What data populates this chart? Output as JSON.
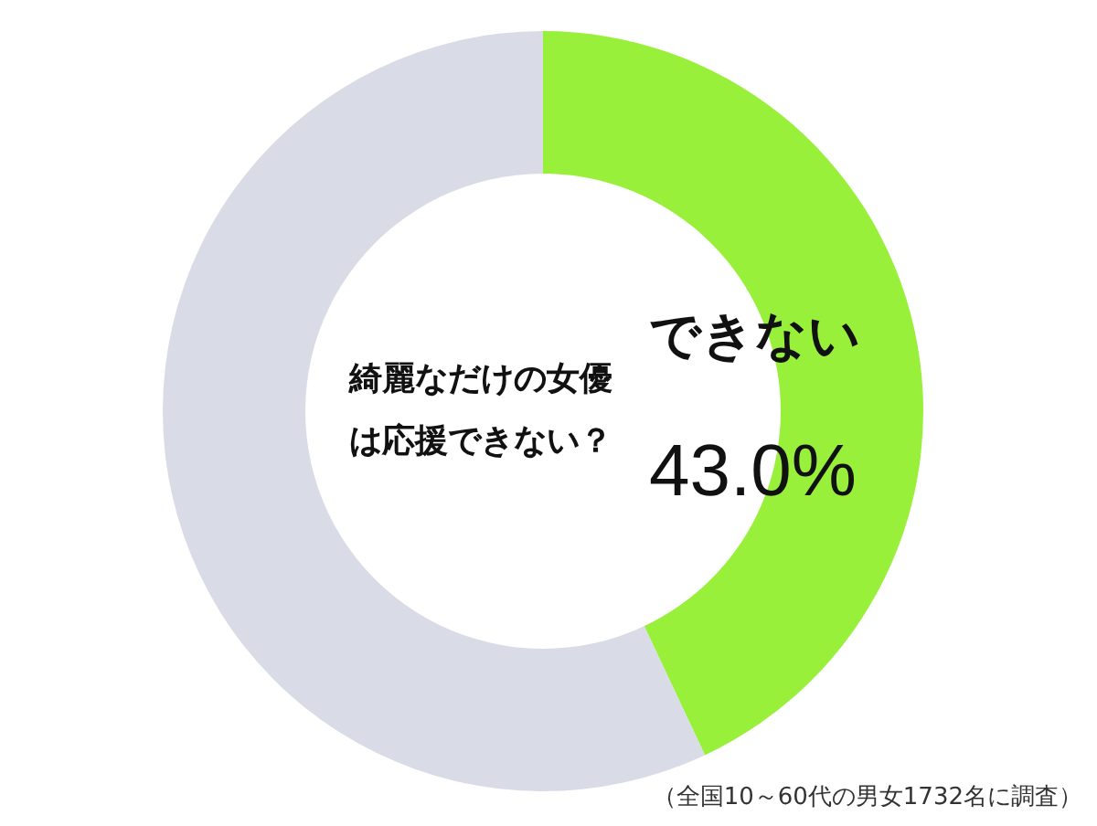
{
  "chart_data": {
    "type": "donut",
    "title": "綺麗なだけの女優は応援できない？",
    "categories": [
      "できない",
      null
    ],
    "values": [
      43.0,
      57.0
    ],
    "colors": [
      "#99f03a",
      "#d9dce6"
    ],
    "value_labels": [
      "43.0%",
      null
    ],
    "legend": false,
    "annotations": [
      "（全国10～60代の男女1732名に調査）"
    ]
  }
}
